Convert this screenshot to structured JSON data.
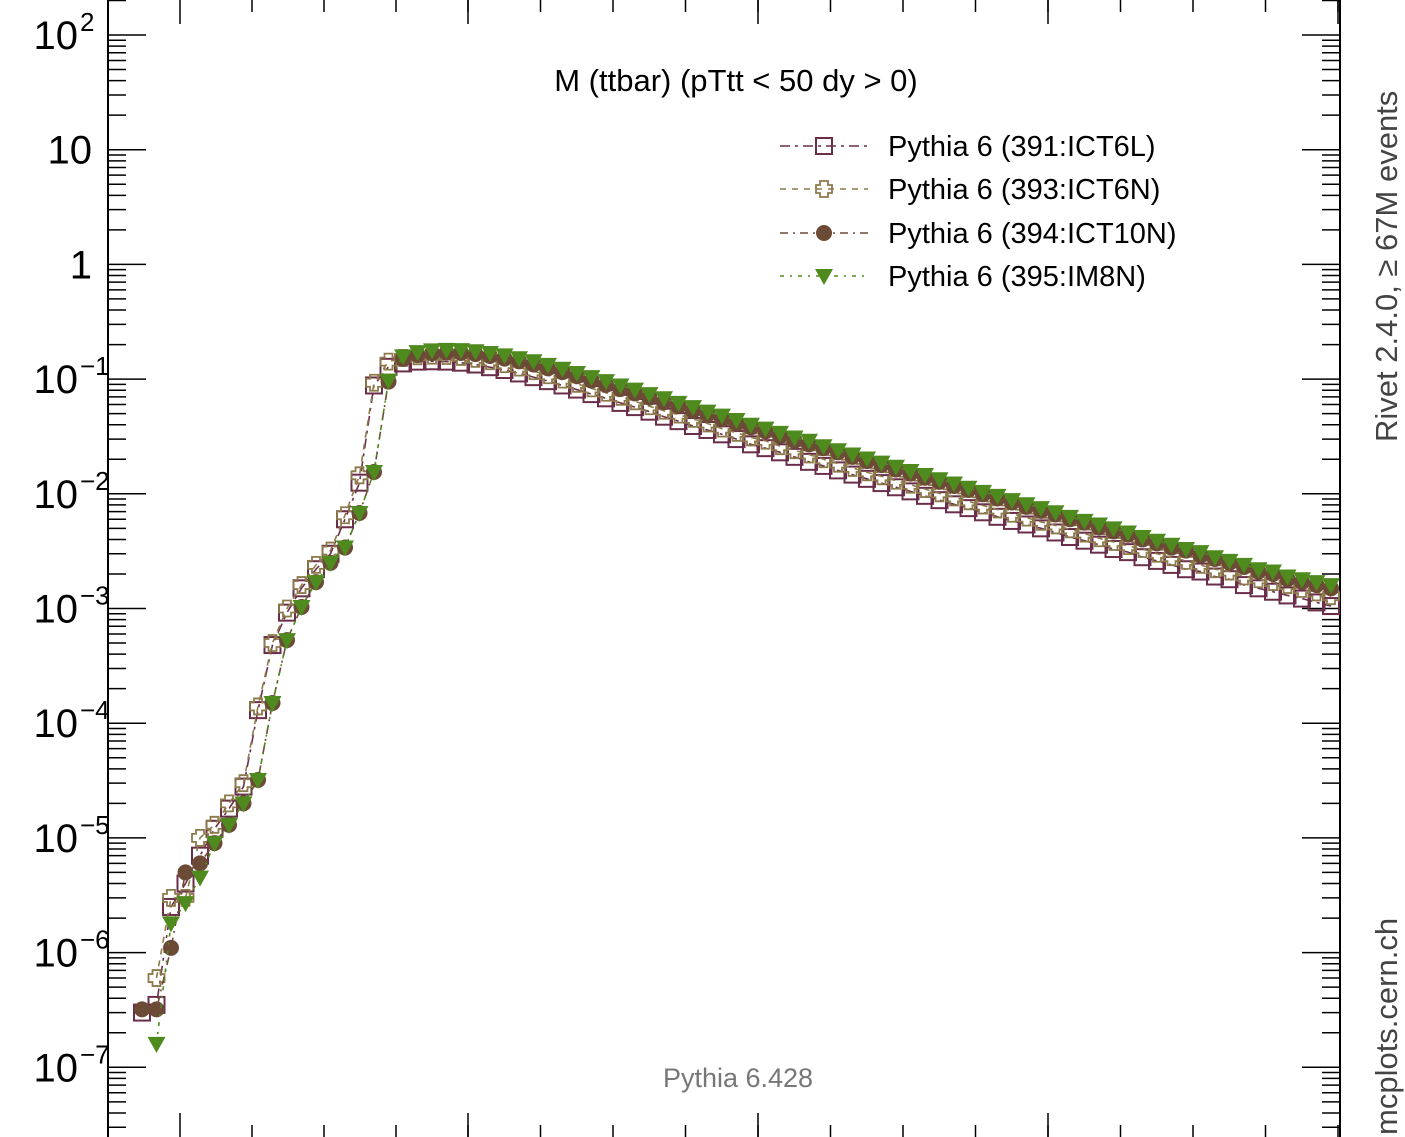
{
  "chart_data": {
    "type": "scatter",
    "title": "M (ttbar) (pTtt < 50 dy > 0)",
    "yscale": "log",
    "ylim": [
      3e-08,
      200
    ],
    "y_ticks": [
      {
        "value": 100,
        "base": "10",
        "exp": "2"
      },
      {
        "value": 10,
        "base": "10",
        "exp": ""
      },
      {
        "value": 1,
        "base": "1",
        "exp": ""
      },
      {
        "value": 0.1,
        "base": "10",
        "exp": "−1"
      },
      {
        "value": 0.01,
        "base": "10",
        "exp": "−2"
      },
      {
        "value": 0.001,
        "base": "10",
        "exp": "−3"
      },
      {
        "value": 0.0001,
        "base": "10",
        "exp": "−4"
      },
      {
        "value": 1e-05,
        "base": "10",
        "exp": "−5"
      },
      {
        "value": 1e-06,
        "base": "10",
        "exp": "−6"
      },
      {
        "value": 1e-07,
        "base": "10",
        "exp": "−7"
      }
    ],
    "x_tick_labels_shown": false,
    "legend_position": "top-right",
    "grid": false,
    "series": [
      {
        "name": "Pythia 6 (391:ICT6L)",
        "marker": "open-square",
        "color": "#6b2e4a",
        "values": [
          3e-07,
          3.5e-07,
          2.5e-06,
          4e-06,
          7e-06,
          1.2e-05,
          1.8e-05,
          2.8e-05,
          0.00013,
          0.00048,
          0.00092,
          0.0015,
          0.0022,
          0.003,
          0.006,
          0.0125,
          0.088,
          0.128,
          0.137,
          0.142,
          0.143,
          0.142,
          0.139,
          0.134,
          0.127,
          0.12,
          0.112,
          0.104,
          0.096,
          0.088,
          0.081,
          0.074,
          0.068,
          0.062,
          0.057,
          0.052,
          0.047,
          0.043,
          0.039,
          0.036,
          0.033,
          0.03,
          0.027,
          0.025,
          0.023,
          0.021,
          0.019,
          0.0175,
          0.016,
          0.0147,
          0.0135,
          0.0124,
          0.0114,
          0.0105,
          0.0096,
          0.0088,
          0.0081,
          0.0075,
          0.0069,
          0.0063,
          0.0058,
          0.0054,
          0.005,
          0.0046,
          0.0042,
          0.0039,
          0.0036,
          0.0033,
          0.0031,
          0.0028,
          0.0026,
          0.0024,
          0.0022,
          0.0021,
          0.0019,
          0.0018,
          0.0016,
          0.0015,
          0.0014,
          0.0013,
          0.00122,
          0.00113,
          0.00105
        ]
      },
      {
        "name": "Pythia 6 (393:ICT6N)",
        "marker": "open-cross",
        "color": "#8c7a4a",
        "values": [
          null,
          6e-07,
          3e-06,
          3e-06,
          1e-05,
          1.3e-05,
          2e-05,
          3e-05,
          0.00014,
          0.0005,
          0.001,
          0.0016,
          0.0024,
          0.0032,
          0.0065,
          0.0145,
          0.093,
          0.142,
          0.153,
          0.158,
          0.16,
          0.159,
          0.156,
          0.15,
          0.143,
          0.135,
          0.126,
          0.117,
          0.108,
          0.099,
          0.091,
          0.083,
          0.076,
          0.07,
          0.064,
          0.058,
          0.053,
          0.049,
          0.045,
          0.041,
          0.037,
          0.034,
          0.031,
          0.029,
          0.026,
          0.024,
          0.022,
          0.02,
          0.0183,
          0.0168,
          0.0154,
          0.0142,
          0.013,
          0.012,
          0.011,
          0.0101,
          0.0093,
          0.0086,
          0.0079,
          0.0073,
          0.0067,
          0.0062,
          0.0057,
          0.0053,
          0.0049,
          0.0045,
          0.0041,
          0.0038,
          0.0035,
          0.0033,
          0.003,
          0.0028,
          0.0026,
          0.0024,
          0.0022,
          0.0021,
          0.0019,
          0.0018,
          0.0017,
          0.0016,
          0.00148,
          0.00138,
          0.00128
        ]
      },
      {
        "name": "Pythia 6 (394:ICT10N)",
        "marker": "filled-circle",
        "color": "#6b4a36",
        "values": [
          3.2e-07,
          3.2e-07,
          1.1e-06,
          5e-06,
          6e-06,
          9e-06,
          1.3e-05,
          2e-05,
          3.2e-05,
          0.00015,
          0.00053,
          0.00103,
          0.0017,
          0.0025,
          0.0034,
          0.0068,
          0.0155,
          0.095,
          0.15,
          0.162,
          0.168,
          0.17,
          0.169,
          0.165,
          0.159,
          0.151,
          0.143,
          0.134,
          0.124,
          0.115,
          0.106,
          0.097,
          0.089,
          0.082,
          0.075,
          0.069,
          0.063,
          0.058,
          0.053,
          0.049,
          0.045,
          0.041,
          0.038,
          0.035,
          0.032,
          0.029,
          0.027,
          0.025,
          0.023,
          0.021,
          0.0193,
          0.0178,
          0.0163,
          0.015,
          0.0138,
          0.0127,
          0.0117,
          0.0108,
          0.0099,
          0.0091,
          0.0084,
          0.0077,
          0.0071,
          0.0066,
          0.006,
          0.0056,
          0.0051,
          0.0047,
          0.0044,
          0.004,
          0.0037,
          0.0034,
          0.0032,
          0.0029,
          0.0027,
          0.0025,
          0.0023,
          0.0021,
          0.002,
          0.0018,
          0.0017,
          0.0016,
          0.0015
        ]
      },
      {
        "name": "Pythia 6 (395:IM8N)",
        "marker": "filled-triangle-down",
        "color": "#4e8a1e",
        "values": [
          null,
          1.6e-07,
          1.8e-06,
          2.7e-06,
          4.5e-06,
          9e-06,
          1.3e-05,
          2e-05,
          3.2e-05,
          0.00015,
          0.00053,
          0.00103,
          0.0017,
          0.0025,
          0.0034,
          0.0068,
          0.0155,
          0.097,
          0.158,
          0.172,
          0.178,
          0.18,
          0.179,
          0.175,
          0.169,
          0.161,
          0.152,
          0.143,
          0.133,
          0.123,
          0.113,
          0.104,
          0.096,
          0.088,
          0.081,
          0.074,
          0.068,
          0.062,
          0.057,
          0.052,
          0.048,
          0.044,
          0.04,
          0.037,
          0.034,
          0.031,
          0.029,
          0.026,
          0.024,
          0.022,
          0.0203,
          0.0187,
          0.0172,
          0.0158,
          0.0146,
          0.0134,
          0.0123,
          0.0113,
          0.0104,
          0.0096,
          0.0088,
          0.0081,
          0.0075,
          0.0069,
          0.0063,
          0.0058,
          0.0054,
          0.005,
          0.0046,
          0.0042,
          0.0039,
          0.0036,
          0.0033,
          0.0031,
          0.0028,
          0.0026,
          0.0024,
          0.0022,
          0.0021,
          0.0019,
          0.0018,
          0.0017,
          0.0016
        ]
      }
    ]
  },
  "side_label_top": "Rivet 2.4.0,  ≥ 67M events",
  "side_label_bottom": "mcplots.cern.ch",
  "watermark": "Pythia 6.428"
}
